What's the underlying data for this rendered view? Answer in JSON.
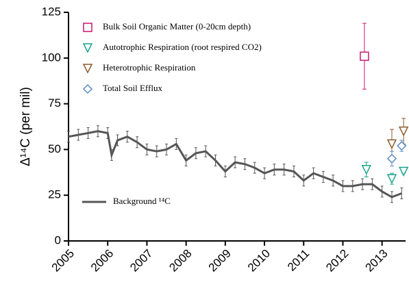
{
  "chart_data": {
    "type": "scatter",
    "y_label": "Δ¹⁴C (per mil)",
    "xlim": [
      2005,
      2013.6
    ],
    "xticks": [
      2005,
      2006,
      2007,
      2008,
      2009,
      2010,
      2011,
      2012,
      2013
    ],
    "ylim": [
      0,
      125
    ],
    "yticks": [
      0,
      25,
      50,
      75,
      100,
      125
    ],
    "series": [
      {
        "name": "Bulk Soil Organic Matter (0-20cm depth)",
        "color": "#c8166e",
        "marker": "square",
        "x": [
          2012.55
        ],
        "values": [
          101
        ],
        "errors": [
          18
        ]
      },
      {
        "name": "Autotrophic Respiration (root respired CO2)",
        "color": "#1aa38a",
        "marker": "triangle-down",
        "x": [
          2012.6,
          2013.25,
          2013.55
        ],
        "values": [
          39,
          34,
          38
        ],
        "errors": [
          4,
          3,
          1
        ]
      },
      {
        "name": "Heterotrophic Respiration",
        "color": "#8b5a2b",
        "marker": "triangle-down",
        "x": [
          2013.25,
          2013.55
        ],
        "values": [
          53,
          60
        ],
        "errors": [
          8,
          7
        ]
      },
      {
        "name": "Total Soil Efflux",
        "color": "#5b8ac6",
        "marker": "diamond",
        "x": [
          2013.25,
          2013.5
        ],
        "values": [
          45,
          52
        ],
        "errors": [
          4,
          3
        ]
      },
      {
        "name": "Background ¹⁴C",
        "color": "#555555",
        "marker": "line",
        "x": [
          2005.0,
          2005.25,
          2005.5,
          2005.75,
          2006.0,
          2006.1,
          2006.25,
          2006.5,
          2006.75,
          2007.0,
          2007.25,
          2007.5,
          2007.75,
          2008.0,
          2008.25,
          2008.5,
          2008.75,
          2009.0,
          2009.25,
          2009.5,
          2009.75,
          2010.0,
          2010.25,
          2010.5,
          2010.75,
          2011.0,
          2011.25,
          2011.5,
          2011.75,
          2012.0,
          2012.25,
          2012.5,
          2012.75,
          2013.0,
          2013.25,
          2013.5
        ],
        "values": [
          57,
          58,
          59,
          60,
          59,
          47,
          55,
          57,
          54,
          50,
          49,
          50,
          53,
          44,
          48,
          49,
          44,
          38,
          43,
          42,
          40,
          37,
          39,
          39,
          38,
          33,
          37,
          35,
          33,
          30,
          30,
          31,
          31,
          27,
          24,
          26
        ],
        "errors": [
          3,
          3,
          3,
          3,
          3,
          3,
          3,
          3,
          3,
          3,
          3,
          3,
          3,
          3,
          3,
          3,
          3,
          3,
          3,
          3,
          3,
          3,
          3,
          3,
          3,
          3,
          3,
          3,
          3,
          3,
          3,
          3,
          3,
          3,
          3,
          3
        ]
      }
    ]
  }
}
